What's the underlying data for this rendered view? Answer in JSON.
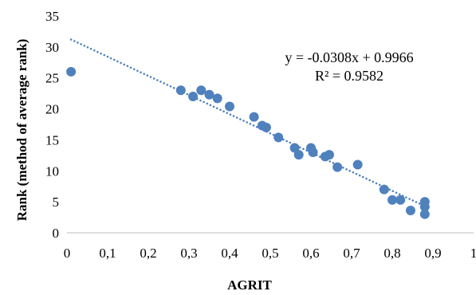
{
  "chart_data": {
    "type": "scatter",
    "xlabel": "AGRIT",
    "ylabel": "Rank (method of average rank)",
    "xlim": [
      0,
      1
    ],
    "ylim": [
      0,
      35
    ],
    "x_ticks": [
      "0",
      "0,1",
      "0,2",
      "0,3",
      "0,4",
      "0,5",
      "0,6",
      "0,7",
      "0,8",
      "0,9",
      "1"
    ],
    "y_ticks": [
      "0",
      "5",
      "10",
      "15",
      "20",
      "25",
      "30",
      "35"
    ],
    "grid": false,
    "marker_color": "#4F81BD",
    "trendline": {
      "type": "linear",
      "style": "dotted",
      "equation": "y = -0.0308x + 0.9966",
      "r2": "R² = 0.9582",
      "x_start": 0.01,
      "x_end": 0.88,
      "y_start": 31.2,
      "y_end": 4.3
    },
    "points": [
      {
        "x": 0.01,
        "y": 26
      },
      {
        "x": 0.28,
        "y": 23
      },
      {
        "x": 0.31,
        "y": 22
      },
      {
        "x": 0.33,
        "y": 23
      },
      {
        "x": 0.35,
        "y": 22.3
      },
      {
        "x": 0.37,
        "y": 21.7
      },
      {
        "x": 0.4,
        "y": 20.4
      },
      {
        "x": 0.46,
        "y": 18.7
      },
      {
        "x": 0.48,
        "y": 17.3
      },
      {
        "x": 0.49,
        "y": 17
      },
      {
        "x": 0.52,
        "y": 15.4
      },
      {
        "x": 0.56,
        "y": 13.7
      },
      {
        "x": 0.57,
        "y": 12.6
      },
      {
        "x": 0.6,
        "y": 13.7
      },
      {
        "x": 0.605,
        "y": 13
      },
      {
        "x": 0.635,
        "y": 12.3
      },
      {
        "x": 0.645,
        "y": 12.6
      },
      {
        "x": 0.665,
        "y": 10.6
      },
      {
        "x": 0.715,
        "y": 11
      },
      {
        "x": 0.78,
        "y": 7
      },
      {
        "x": 0.8,
        "y": 5.3
      },
      {
        "x": 0.82,
        "y": 5.3
      },
      {
        "x": 0.845,
        "y": 3.6
      },
      {
        "x": 0.88,
        "y": 5
      },
      {
        "x": 0.88,
        "y": 4.2
      },
      {
        "x": 0.88,
        "y": 3
      }
    ]
  }
}
